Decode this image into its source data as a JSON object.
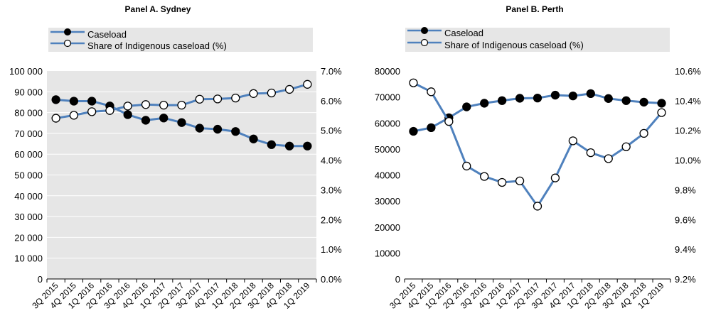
{
  "chart_data": [
    {
      "type": "line",
      "title": "Panel A. Sydney",
      "categories": [
        "3Q2015",
        "4Q2015",
        "1Q2016",
        "2Q2016",
        "3Q2016",
        "4Q2016",
        "1Q2017",
        "2Q2017",
        "3Q2017",
        "4Q2017",
        "1Q2018",
        "2Q2018",
        "3Q2018",
        "4Q2018",
        "1Q2019"
      ],
      "series": [
        {
          "name": "Caseload",
          "axis": "left",
          "values": [
            86200,
            85500,
            85500,
            83200,
            79000,
            76300,
            77400,
            75200,
            72500,
            72000,
            70900,
            67300,
            64600,
            63900,
            63900
          ]
        },
        {
          "name": "Share of Indigenous caseload (%)",
          "axis": "right",
          "values": [
            5.41,
            5.51,
            5.63,
            5.67,
            5.82,
            5.87,
            5.85,
            5.85,
            6.05,
            6.06,
            6.09,
            6.24,
            6.26,
            6.38,
            6.55
          ]
        }
      ],
      "ylim_left": [
        0,
        100000
      ],
      "yticks_left": [
        "0",
        "10 000",
        "20 000",
        "30 000",
        "40 000",
        "50 000",
        "60 000",
        "70 000",
        "80 000",
        "90 000",
        "100 000"
      ],
      "ylim_right": [
        0,
        7
      ],
      "yticks_right": [
        "0.0%",
        "1.0%",
        "2.0%",
        "3.0%",
        "4.0%",
        "5.0%",
        "6.0%",
        "7.0%"
      ],
      "xticks": [
        "3Q 2015",
        "4Q 2015",
        "1Q 2016",
        "2Q 2016",
        "3Q 2016",
        "4Q 2016",
        "1Q 2017",
        "2Q 2017",
        "3Q 2017",
        "4Q 2017",
        "1Q 2018",
        "2Q 2018",
        "3Q 2018",
        "4Q 2018",
        "1Q 2019"
      ],
      "legend": {
        "position": "top",
        "items": [
          "Caseload",
          "Share of Indigenous caseload (%)"
        ]
      },
      "colors": {
        "line": "#4f81bd",
        "plot_bg": "#e6e6e6",
        "legend_bg": "#e6e6e6",
        "grid": "#ffffff"
      },
      "grid": true
    },
    {
      "type": "line",
      "title": "Panel B. Perth",
      "categories": [
        "3Q2015",
        "4Q2015",
        "1Q2016",
        "2Q2016",
        "3Q2016",
        "4Q2016",
        "1Q2017",
        "2Q2017",
        "3Q2017",
        "4Q2017",
        "1Q2018",
        "2Q2018",
        "3Q2018",
        "4Q2018",
        "1Q2019"
      ],
      "series": [
        {
          "name": "Caseload",
          "axis": "left",
          "values": [
            56800,
            58200,
            62000,
            66200,
            67600,
            68600,
            69500,
            69600,
            70700,
            70400,
            71300,
            69400,
            68600,
            68000,
            67600
          ]
        },
        {
          "name": "Share of Indigenous caseload (%)",
          "axis": "right",
          "values": [
            10.52,
            10.46,
            10.26,
            9.96,
            9.89,
            9.85,
            9.86,
            9.69,
            9.88,
            10.13,
            10.05,
            10.01,
            10.09,
            10.18,
            10.32
          ]
        }
      ],
      "ylim_left": [
        0,
        80000
      ],
      "yticks_left": [
        "0",
        "10000",
        "20000",
        "30000",
        "40000",
        "50000",
        "60000",
        "70000",
        "80000"
      ],
      "ylim_right": [
        9.2,
        10.6
      ],
      "yticks_right": [
        "9.2%",
        "9.4%",
        "9.6%",
        "9.8%",
        "10.0%",
        "10.2%",
        "10.4%",
        "10.6%"
      ],
      "xticks": [
        "3Q 2015",
        "4Q 2015",
        "1Q 2016",
        "2Q 2016",
        "3Q 2016",
        "4Q 2016",
        "1Q 2017",
        "2Q 2017",
        "3Q 2017",
        "4Q 2017",
        "1Q 2018",
        "2Q 2018",
        "3Q 2018",
        "4Q 2018",
        "1Q 2019"
      ],
      "legend": {
        "position": "top",
        "items": [
          "Caseload",
          "Share of Indigenous caseload (%)"
        ]
      },
      "colors": {
        "line": "#4f81bd",
        "plot_bg": "#ffffff",
        "legend_bg": "#e6e6e6",
        "grid": "#ffffff"
      },
      "grid": false
    }
  ]
}
